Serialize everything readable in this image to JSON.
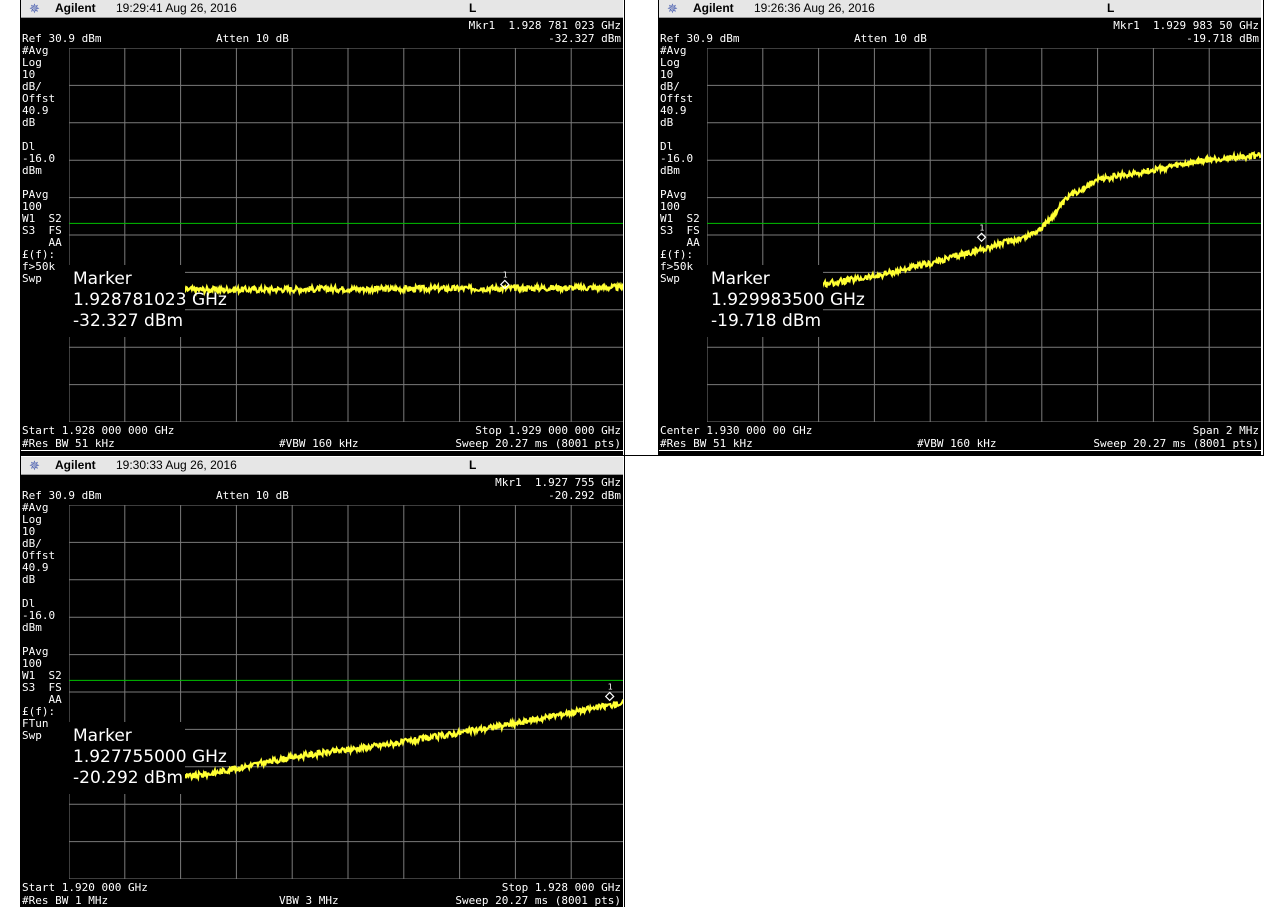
{
  "colors": {
    "trace": "#ffff33",
    "grid": "#7a7a7a",
    "display_line": "#00c000",
    "background": "#000000",
    "topbar": "#e6e6e6"
  },
  "chart_data": [
    {
      "type": "line",
      "topbar": {
        "brand": "Agilent",
        "time": "19:29:41  Aug 26, 2016",
        "mode": "L"
      },
      "mkr_line": "Mkr1  1.928 781 023 GHz",
      "ref": "Ref 30.9 dBm",
      "atten": "Atten 10 dB",
      "mkr_value": "-32.327 dBm",
      "side": [
        "#Avg",
        "Log",
        "10",
        "dB/",
        "Offst",
        "40.9",
        "dB",
        "",
        "Dl",
        "-16.0",
        "dBm",
        "",
        "PAvg",
        "100",
        "W1  S2",
        "S3  FS",
        "    AA",
        "£(f):",
        "f>50k",
        "Swp"
      ],
      "marker": {
        "title": "Marker",
        "freq": "1.928781023 GHz",
        "level": "-32.327 dBm"
      },
      "bottom_left1": "Start 1.928 000 000 GHz",
      "bottom_right1": "Stop 1.929 000 000 GHz",
      "bottom_left2": "#Res BW 51 kHz",
      "bottom_mid2": "#VBW 160 kHz",
      "bottom_right2": "Sweep 20.27 ms (8001 pts)",
      "y_ref_dbm": 30.9,
      "y_div_db": 10,
      "display_line_dbm": -16.0,
      "x_start_ghz": 1.928,
      "x_stop_ghz": 1.929,
      "trace_x_frac": [
        0,
        0.1,
        0.2,
        0.3,
        0.4,
        0.5,
        0.6,
        0.7,
        0.8,
        0.9,
        1.0
      ],
      "trace_dbm": [
        -33.9,
        -33.8,
        -33.7,
        -33.7,
        -33.6,
        -33.5,
        -33.5,
        -33.4,
        -33.3,
        -33.2,
        -33.1
      ],
      "marker_x_frac": 0.781,
      "marker_dbm": -32.327
    },
    {
      "type": "line",
      "topbar": {
        "brand": "Agilent",
        "time": "19:26:36  Aug 26, 2016",
        "mode": "L"
      },
      "mkr_line": "Mkr1  1.929 983 50 GHz",
      "ref": "Ref 30.9 dBm",
      "atten": "Atten 10 dB",
      "mkr_value": "-19.718 dBm",
      "side": [
        "#Avg",
        "Log",
        "10",
        "dB/",
        "Offst",
        "40.9",
        "dB",
        "",
        "Dl",
        "-16.0",
        "dBm",
        "",
        "PAvg",
        "100",
        "W1  S2",
        "S3  FS",
        "    AA",
        "£(f):",
        "f>50k",
        "Swp"
      ],
      "marker": {
        "title": "Marker",
        "freq": "1.929983500 GHz",
        "level": "-19.718 dBm"
      },
      "bottom_left1": "Center 1.930 000 00 GHz",
      "bottom_right1": "Span 2 MHz",
      "bottom_left2": "#Res BW 51 kHz",
      "bottom_mid2": "#VBW 160 kHz",
      "bottom_right2": "Sweep 20.27 ms (8001 pts)",
      "y_ref_dbm": 30.9,
      "y_div_db": 10,
      "display_line_dbm": -16.0,
      "x_start_ghz": 1.929,
      "x_stop_ghz": 1.931,
      "trace_x_frac": [
        0,
        0.1,
        0.2,
        0.3,
        0.4,
        0.45,
        0.5,
        0.52,
        0.55,
        0.57,
        0.6,
        0.65,
        0.7,
        0.8,
        0.9,
        1.0
      ],
      "trace_dbm": [
        -33.9,
        -33.6,
        -32.4,
        -30.2,
        -26.7,
        -24.6,
        -22.6,
        -21.7,
        -20.4,
        -19.7,
        -17.3,
        -8.6,
        -4.3,
        -1.7,
        1.0,
        2.3
      ],
      "marker_x_frac": 0.492,
      "marker_dbm": -19.718
    },
    {
      "type": "line",
      "topbar": {
        "brand": "Agilent",
        "time": "19:30:33  Aug 26, 2016",
        "mode": "L"
      },
      "mkr_line": "Mkr1  1.927 755 GHz",
      "ref": "Ref 30.9 dBm",
      "atten": "Atten 10 dB",
      "mkr_value": "-20.292 dBm",
      "side": [
        "#Avg",
        "Log",
        "10",
        "dB/",
        "Offst",
        "40.9",
        "dB",
        "",
        "Dl",
        "-16.0",
        "dBm",
        "",
        "PAvg",
        "100",
        "W1  S2",
        "S3  FS",
        "    AA",
        "£(f):",
        "FTun",
        "Swp"
      ],
      "marker": {
        "title": "Marker",
        "freq": "1.927755000 GHz",
        "level": "-20.292 dBm"
      },
      "bottom_left1": "Start 1.920 000 GHz",
      "bottom_right1": "Stop 1.928 000 GHz",
      "bottom_left2": "#Res BW 1 MHz",
      "bottom_mid2": "VBW 3 MHz",
      "bottom_right2": "Sweep 20.27 ms (8001 pts)",
      "y_ref_dbm": 30.9,
      "y_div_db": 10,
      "display_line_dbm": -16.0,
      "x_start_ghz": 1.92,
      "x_stop_ghz": 1.928,
      "trace_x_frac": [
        0,
        0.1,
        0.2,
        0.25,
        0.3,
        0.4,
        0.5,
        0.6,
        0.7,
        0.8,
        0.9,
        1.0
      ],
      "trace_dbm": [
        -42.8,
        -42.6,
        -42.0,
        -41.0,
        -39.5,
        -36.5,
        -34.5,
        -32.5,
        -30.0,
        -27.5,
        -24.5,
        -21.8
      ],
      "marker_x_frac": 0.969,
      "marker_dbm": -20.292
    }
  ]
}
